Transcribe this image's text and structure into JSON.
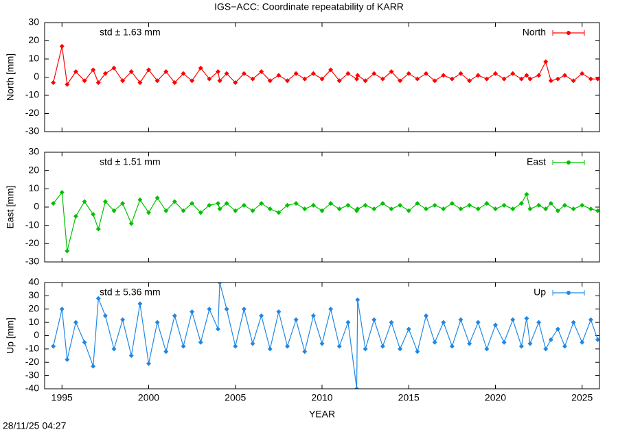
{
  "title": "IGS−ACC: Coordinate repeatability of KARR",
  "timestamp": "28/11/25 04:27",
  "chart_data": [
    {
      "type": "line",
      "ylabel": "North [mm]",
      "annotation": "std ± 1.63 mm",
      "xlim": [
        1994,
        2026
      ],
      "xticks": [
        1995,
        2000,
        2005,
        2010,
        2015,
        2020,
        2025
      ],
      "ylim": [
        -30,
        30
      ],
      "yticks": [
        -30,
        -20,
        -10,
        0,
        10,
        20,
        30
      ],
      "legend": "top-right",
      "x": [
        1994.5,
        1995.0,
        1995.3,
        1995.8,
        1996.3,
        1996.8,
        1997.1,
        1997.5,
        1998.0,
        1998.5,
        1999.0,
        1999.5,
        2000.0,
        2000.5,
        2001.0,
        2001.5,
        2002.0,
        2002.5,
        2003.0,
        2003.5,
        2004.0,
        2004.1,
        2004.5,
        2005.0,
        2005.5,
        2006.0,
        2006.5,
        2007.0,
        2007.5,
        2008.0,
        2008.5,
        2009.0,
        2009.5,
        2010.0,
        2010.5,
        2011.0,
        2011.5,
        2012.0,
        2012.05,
        2012.5,
        2013.0,
        2013.5,
        2014.0,
        2014.5,
        2015.0,
        2015.5,
        2016.0,
        2016.5,
        2017.0,
        2017.5,
        2018.0,
        2018.5,
        2019.0,
        2019.5,
        2020.0,
        2020.5,
        2021.0,
        2021.5,
        2021.8,
        2022.0,
        2022.5,
        2022.9,
        2023.2,
        2023.6,
        2024.0,
        2024.5,
        2025.0,
        2025.5,
        2025.9
      ],
      "series": [
        {
          "name": "North",
          "color": "#ff0000",
          "values": [
            -3,
            17,
            -4,
            3,
            -2,
            4,
            -3,
            2,
            5,
            -2,
            3,
            -3,
            4,
            -2,
            3,
            -3,
            2,
            -2,
            5,
            -1,
            3,
            -2,
            2,
            -3,
            2,
            -1,
            3,
            -2,
            1,
            -2,
            2,
            -1,
            2,
            -1,
            4,
            -2,
            2,
            -1,
            1,
            -2,
            2,
            -1,
            3,
            -2,
            2,
            -1,
            2,
            -2,
            1,
            -1,
            2,
            -2,
            1,
            -1,
            2,
            -1,
            2,
            -1,
            1,
            -1,
            1,
            8.5,
            -2,
            -1,
            1,
            -2,
            2,
            -1,
            -1
          ]
        }
      ]
    },
    {
      "type": "line",
      "ylabel": "East [mm]",
      "annotation": "std ± 1.51 mm",
      "xlim": [
        1994,
        2026
      ],
      "xticks": [
        1995,
        2000,
        2005,
        2010,
        2015,
        2020,
        2025
      ],
      "ylim": [
        -30,
        30
      ],
      "yticks": [
        -30,
        -20,
        -10,
        0,
        10,
        20,
        30
      ],
      "legend": "top-right",
      "x": [
        1994.5,
        1995.0,
        1995.3,
        1995.8,
        1996.3,
        1996.8,
        1997.1,
        1997.5,
        1998.0,
        1998.5,
        1999.0,
        1999.5,
        2000.0,
        2000.5,
        2001.0,
        2001.5,
        2002.0,
        2002.5,
        2003.0,
        2003.5,
        2004.0,
        2004.1,
        2004.5,
        2005.0,
        2005.5,
        2006.0,
        2006.5,
        2007.0,
        2007.5,
        2008.0,
        2008.5,
        2009.0,
        2009.5,
        2010.0,
        2010.5,
        2011.0,
        2011.5,
        2012.0,
        2012.05,
        2012.5,
        2013.0,
        2013.5,
        2014.0,
        2014.5,
        2015.0,
        2015.5,
        2016.0,
        2016.5,
        2017.0,
        2017.5,
        2018.0,
        2018.5,
        2019.0,
        2019.5,
        2020.0,
        2020.5,
        2021.0,
        2021.5,
        2021.8,
        2022.0,
        2022.5,
        2022.9,
        2023.2,
        2023.6,
        2024.0,
        2024.5,
        2025.0,
        2025.5,
        2025.9
      ],
      "series": [
        {
          "name": "East",
          "color": "#00c000",
          "values": [
            2,
            8,
            -24,
            -5,
            3,
            -4,
            -12,
            3,
            -2,
            2,
            -9,
            4,
            -3,
            5,
            -2,
            3,
            -2,
            2,
            -3,
            1,
            2,
            -1,
            2,
            -2,
            1,
            -2,
            2,
            -1,
            -3,
            1,
            2,
            -1,
            1,
            -2,
            2,
            -1,
            1,
            -2,
            -1,
            1,
            -1,
            2,
            -1,
            1,
            -2,
            2,
            -1,
            1,
            -1,
            2,
            -1,
            1,
            -1,
            2,
            -1,
            1,
            -1,
            2,
            7,
            -1,
            1,
            -1,
            2,
            -2,
            1,
            -1,
            1,
            -1,
            -2
          ]
        }
      ]
    },
    {
      "type": "line",
      "ylabel": "Up [mm]",
      "xlabel": "YEAR",
      "annotation": "std ± 5.36 mm",
      "xlim": [
        1994,
        2026
      ],
      "xticks": [
        1995,
        2000,
        2005,
        2010,
        2015,
        2020,
        2025
      ],
      "ylim": [
        -40,
        40
      ],
      "yticks": [
        -40,
        -30,
        -20,
        -10,
        0,
        10,
        20,
        30,
        40
      ],
      "legend": "top-right",
      "x": [
        1994.5,
        1995.0,
        1995.3,
        1995.8,
        1996.3,
        1996.8,
        1997.1,
        1997.5,
        1998.0,
        1998.5,
        1999.0,
        1999.5,
        2000.0,
        2000.5,
        2001.0,
        2001.5,
        2002.0,
        2002.5,
        2003.0,
        2003.5,
        2004.0,
        2004.1,
        2004.5,
        2005.0,
        2005.5,
        2006.0,
        2006.5,
        2007.0,
        2007.5,
        2008.0,
        2008.5,
        2009.0,
        2009.5,
        2010.0,
        2010.5,
        2011.0,
        2011.5,
        2012.0,
        2012.05,
        2012.5,
        2013.0,
        2013.5,
        2014.0,
        2014.5,
        2015.0,
        2015.5,
        2016.0,
        2016.5,
        2017.0,
        2017.5,
        2018.0,
        2018.5,
        2019.0,
        2019.5,
        2020.0,
        2020.5,
        2021.0,
        2021.5,
        2021.8,
        2022.0,
        2022.5,
        2022.9,
        2023.2,
        2023.6,
        2024.0,
        2024.5,
        2025.0,
        2025.5,
        2025.9
      ],
      "series": [
        {
          "name": "Up",
          "color": "#1e88e5",
          "values": [
            -8,
            20,
            -18,
            10,
            -5,
            -23,
            28,
            15,
            -10,
            12,
            -15,
            24,
            -21,
            10,
            -12,
            15,
            -8,
            18,
            -5,
            20,
            5,
            40,
            20,
            -8,
            20,
            -6,
            15,
            -10,
            18,
            -8,
            12,
            -12,
            15,
            -6,
            20,
            -8,
            10,
            -40,
            27,
            -10,
            12,
            -8,
            10,
            -10,
            5,
            -12,
            15,
            -5,
            10,
            -8,
            12,
            -6,
            10,
            -10,
            8,
            -5,
            12,
            -8,
            13,
            -6,
            10,
            -10,
            -3,
            5,
            -8,
            10,
            -5,
            12,
            -3
          ]
        }
      ]
    }
  ]
}
